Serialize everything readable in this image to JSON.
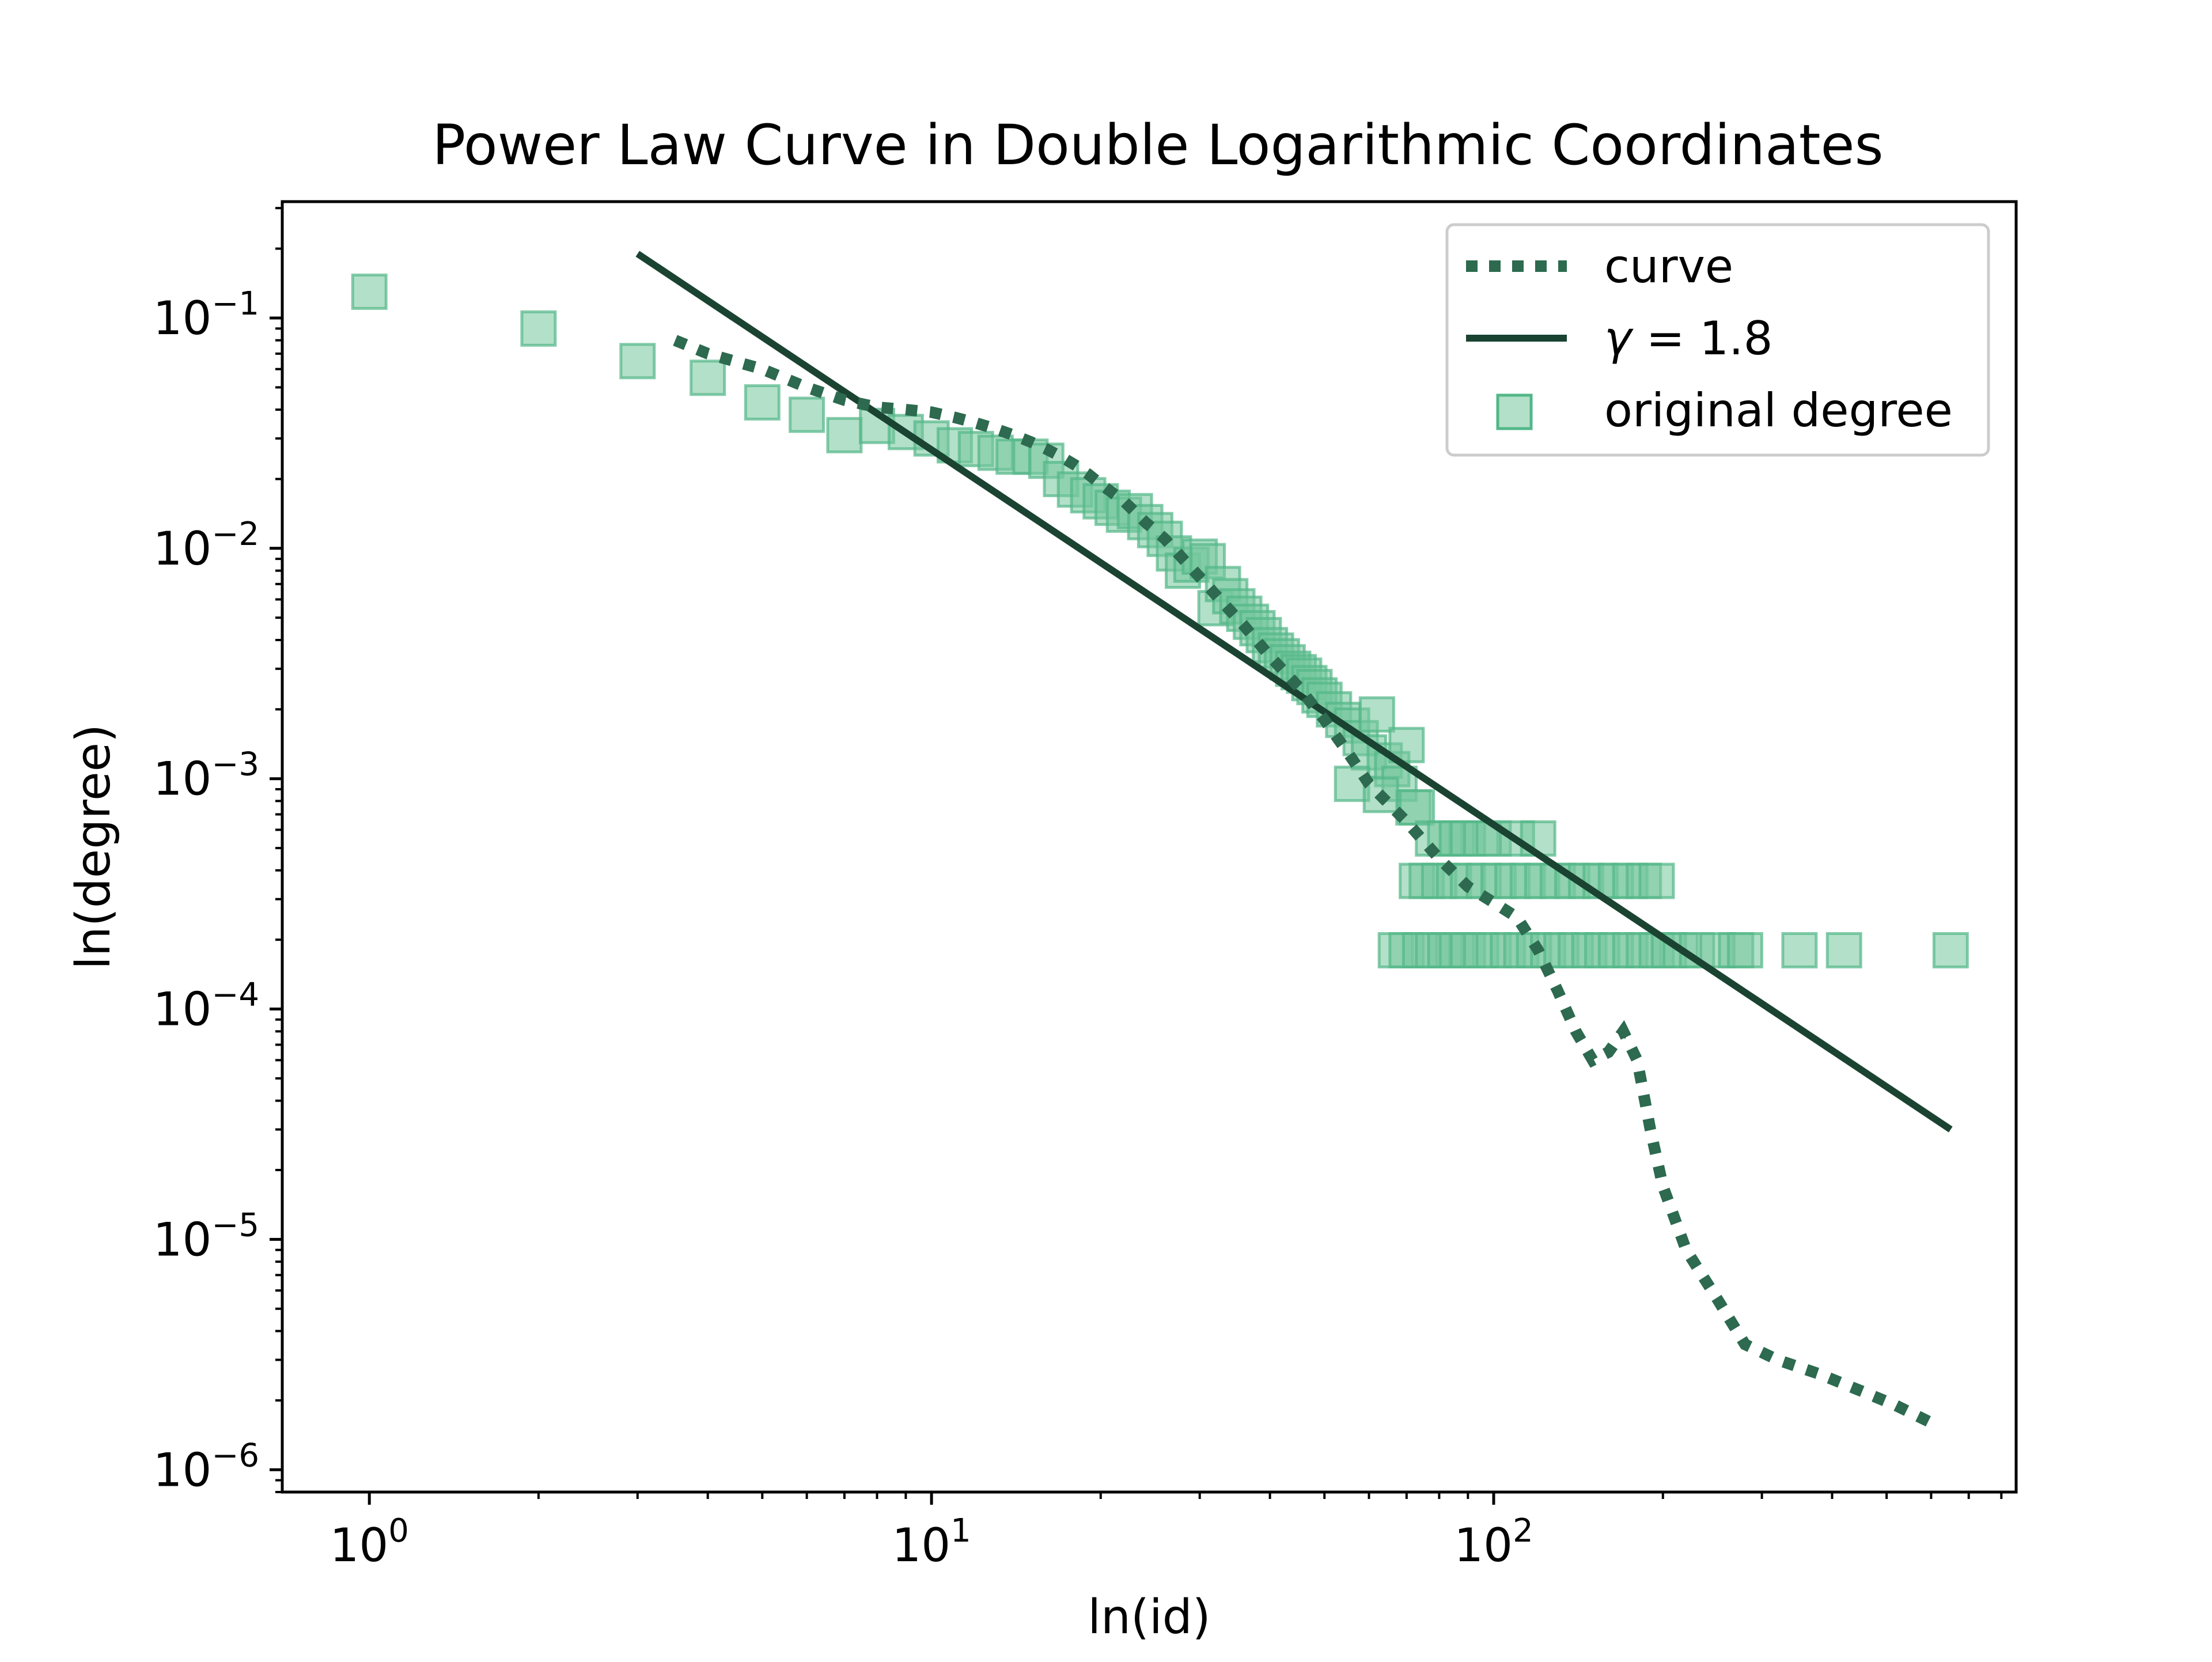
{
  "chart_data": {
    "type": "scatter",
    "title": "Power Law Curve in Double Logarithmic Coordinates",
    "xlabel": "ln(id)",
    "ylabel": "ln(degree)",
    "xscale": "log",
    "yscale": "log",
    "xlim": [
      0.7,
      850
    ],
    "ylim": [
      8e-07,
      0.32
    ],
    "grid": false,
    "legend_position": "top-right",
    "x_ticks": [
      {
        "value": 1,
        "base": "10",
        "exp": "0"
      },
      {
        "value": 10,
        "base": "10",
        "exp": "1"
      },
      {
        "value": 100,
        "base": "10",
        "exp": "2"
      }
    ],
    "y_ticks": [
      {
        "value": 0.1,
        "base": "10",
        "exp": "−1"
      },
      {
        "value": 0.01,
        "base": "10",
        "exp": "−2"
      },
      {
        "value": 0.001,
        "base": "10",
        "exp": "−3"
      },
      {
        "value": 0.0001,
        "base": "10",
        "exp": "−4"
      },
      {
        "value": 1e-05,
        "base": "10",
        "exp": "−5"
      },
      {
        "value": 1e-06,
        "base": "10",
        "exp": "−6"
      }
    ],
    "legend": [
      {
        "label": "curve",
        "style": "dotted-line"
      },
      {
        "label_symbol": "γ",
        "label_rest": " = 1.8",
        "style": "solid-line"
      },
      {
        "label": "original degree",
        "style": "square-marker"
      }
    ],
    "colors": {
      "curve": "#2d6a4f",
      "fit_line": "#1b4332",
      "marker_fill": "#74c69d",
      "marker_edge": "#52b788"
    },
    "series": [
      {
        "name": "curve",
        "kind": "line",
        "style": "dotted",
        "x": [
          3.5,
          4,
          5,
          6,
          7,
          8,
          9,
          10,
          11,
          12,
          13,
          14,
          15,
          16,
          17,
          18,
          19,
          20,
          22,
          24,
          26,
          28,
          30,
          33,
          36,
          40,
          45,
          50,
          55,
          60,
          70,
          80,
          90,
          100,
          110,
          120,
          130,
          140,
          150,
          160,
          170,
          180,
          190,
          200,
          220,
          250,
          280,
          320,
          380,
          450,
          520,
          600
        ],
        "y": [
          0.08,
          0.07,
          0.06,
          0.05,
          0.044,
          0.041,
          0.04,
          0.039,
          0.037,
          0.035,
          0.033,
          0.031,
          0.029,
          0.027,
          0.025,
          0.023,
          0.021,
          0.019,
          0.016,
          0.013,
          0.011,
          0.009,
          0.0075,
          0.0058,
          0.0046,
          0.0034,
          0.0025,
          0.0018,
          0.0013,
          0.00095,
          0.00065,
          0.00045,
          0.00034,
          0.00029,
          0.00025,
          0.00018,
          0.00012,
          8e-05,
          6e-05,
          6.5e-05,
          8e-05,
          6e-05,
          3e-05,
          1.7e-05,
          9e-06,
          5.5e-06,
          3.5e-06,
          3e-06,
          2.6e-06,
          2.2e-06,
          1.9e-06,
          1.6e-06
        ]
      },
      {
        "name": "γ = 1.8",
        "kind": "line",
        "style": "solid",
        "x": [
          3,
          650
        ],
        "y": [
          0.19,
          3e-05
        ]
      },
      {
        "name": "original degree",
        "kind": "scatter",
        "marker": "square",
        "x": [
          1,
          2,
          3,
          4,
          5,
          6,
          7,
          8,
          9,
          10,
          11,
          12,
          13,
          14,
          15,
          16,
          17,
          18,
          19,
          20,
          21,
          22,
          23,
          24,
          25,
          26,
          27,
          28,
          29,
          30,
          31,
          32,
          33,
          34,
          35,
          36,
          37,
          38,
          39,
          40,
          41,
          42,
          43,
          44,
          45,
          46,
          47,
          48,
          49,
          50,
          52,
          54,
          56,
          58,
          60,
          62,
          64,
          66,
          68,
          70,
          72,
          56,
          63,
          73,
          78,
          82,
          86,
          90,
          95,
          100,
          110,
          120,
          73,
          76,
          80,
          85,
          90,
          96,
          102,
          108,
          115,
          122,
          130,
          138,
          146,
          155,
          165,
          175,
          185,
          195,
          67,
          70,
          74,
          78,
          82,
          86,
          90,
          95,
          100,
          106,
          112,
          118,
          125,
          132,
          140,
          148,
          156,
          165,
          175,
          185,
          195,
          205,
          215,
          230,
          250,
          270,
          280,
          350,
          420,
          650
        ],
        "y": [
          0.13,
          0.09,
          0.065,
          0.055,
          0.043,
          0.038,
          0.031,
          0.034,
          0.032,
          0.03,
          0.028,
          0.027,
          0.026,
          0.025,
          0.025,
          0.024,
          0.02,
          0.018,
          0.017,
          0.016,
          0.015,
          0.014,
          0.0145,
          0.013,
          0.012,
          0.011,
          0.0095,
          0.008,
          0.0085,
          0.0092,
          0.0088,
          0.0055,
          0.007,
          0.0062,
          0.0056,
          0.0052,
          0.0048,
          0.0045,
          0.0042,
          0.0038,
          0.0036,
          0.0034,
          0.0032,
          0.003,
          0.0029,
          0.0028,
          0.0026,
          0.0025,
          0.0023,
          0.0022,
          0.002,
          0.0018,
          0.0017,
          0.0015,
          0.0013,
          0.0019,
          0.0012,
          0.0011,
          0.00095,
          0.0014,
          0.00075,
          0.00095,
          0.00085,
          0.00075,
          0.00055,
          0.00055,
          0.00055,
          0.00055,
          0.00055,
          0.00055,
          0.00055,
          0.00055,
          0.00036,
          0.00036,
          0.00036,
          0.00036,
          0.00036,
          0.00036,
          0.00036,
          0.00036,
          0.00036,
          0.00036,
          0.00036,
          0.00036,
          0.00036,
          0.00036,
          0.00036,
          0.00036,
          0.00036,
          0.00036,
          0.00018,
          0.00018,
          0.00018,
          0.00018,
          0.00018,
          0.00018,
          0.00018,
          0.00018,
          0.00018,
          0.00018,
          0.00018,
          0.00018,
          0.00018,
          0.00018,
          0.00018,
          0.00018,
          0.00018,
          0.00018,
          0.00018,
          0.00018,
          0.00018,
          0.00018,
          0.00018,
          0.00018,
          0.00018,
          0.00018,
          0.00018,
          0.00018,
          0.00018,
          0.00018
        ]
      }
    ]
  }
}
